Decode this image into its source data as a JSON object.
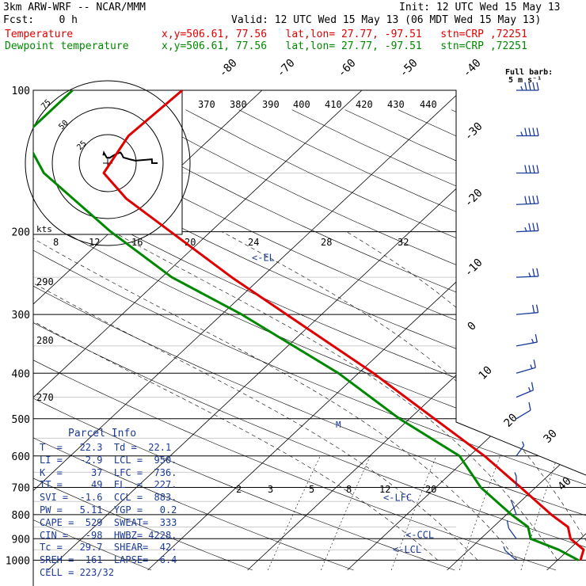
{
  "header": {
    "model": "3km ARW-WRF -- NCAR/MMM",
    "init": "Init: 12 UTC Wed 15 May 13",
    "fcst": "Fcst:    0 h",
    "valid": "Valid: 12 UTC Wed 15 May 13 (06 MDT Wed 15 May 13)",
    "temp_label": "Temperature",
    "dew_label": "Dewpoint temperature",
    "temp_loc": "x,y=506.61, 77.56   lat,lon= 27.77, -97.51   stn=CRP ,72251",
    "dew_loc": "x,y=506.61, 77.56   lat,lon= 27.77, -97.51   stn=CRP ,72251"
  },
  "colors": {
    "temperature": "#e00000",
    "dewpoint": "#008800",
    "annotation": "#1a3a9a",
    "grid": "#000000"
  },
  "chart_data": {
    "type": "line",
    "title": "",
    "ylabel": "",
    "pressure_ticks": [
      "100",
      "200",
      "300",
      "400",
      "500",
      "600",
      "700",
      "800",
      "900",
      "1000"
    ],
    "temp_axis_labels": [
      "-80",
      "-70",
      "-60",
      "-50",
      "-40",
      "-30",
      "-20",
      "-10",
      "0",
      "10",
      "20",
      "30",
      "40"
    ],
    "theta_labels": [
      "370",
      "380",
      "390",
      "400",
      "410",
      "420",
      "430",
      "440",
      "290",
      "280",
      "270"
    ],
    "mixing_ratio_labels": [
      "8",
      "12",
      "16",
      "20",
      "24",
      "28",
      "32",
      "2",
      "3",
      "5",
      "8",
      "12",
      "20"
    ],
    "wind_units_label": "Full barb:\n5 m s⁻¹",
    "hodograph_label": "kts",
    "hodograph_ring_labels": [
      "75",
      "50",
      "25"
    ],
    "series": [
      {
        "name": "Temperature",
        "points": [
          [
            1000,
            22.3
          ],
          [
            950,
            21.5
          ],
          [
            900,
            19.0
          ],
          [
            850,
            17.5
          ],
          [
            800,
            14.5
          ],
          [
            700,
            8.5
          ],
          [
            600,
            1.5
          ],
          [
            500,
            -7.5
          ],
          [
            400,
            -18.5
          ],
          [
            300,
            -33.5
          ],
          [
            250,
            -43.0
          ],
          [
            200,
            -54.0
          ],
          [
            170,
            -62.0
          ],
          [
            150,
            -67.0
          ],
          [
            125,
            -68.5
          ],
          [
            100,
            -68.0
          ]
        ]
      },
      {
        "name": "Dewpoint temperature",
        "points": [
          [
            1000,
            22.1
          ],
          [
            950,
            19.0
          ],
          [
            900,
            15.0
          ],
          [
            850,
            13.5
          ],
          [
            800,
            10.5
          ],
          [
            700,
            4.5
          ],
          [
            600,
            -1.0
          ],
          [
            500,
            -11.0
          ],
          [
            400,
            -22.0
          ],
          [
            300,
            -38.0
          ],
          [
            250,
            -49.0
          ],
          [
            200,
            -60.0
          ],
          [
            150,
            -73.0
          ],
          [
            125,
            -79.0
          ],
          [
            100,
            -79.0
          ]
        ]
      }
    ],
    "levels": [
      {
        "label": "<-EL",
        "p": 227
      },
      {
        "label": "<-LFC",
        "p": 736
      },
      {
        "label": "<-CCL",
        "p": 883
      },
      {
        "label": "<-LCL",
        "p": 950
      }
    ],
    "wind_barbs": [
      {
        "p": 100,
        "spd": 45,
        "dir": 270
      },
      {
        "p": 125,
        "spd": 45,
        "dir": 270
      },
      {
        "p": 150,
        "spd": 40,
        "dir": 270
      },
      {
        "p": 175,
        "spd": 40,
        "dir": 265
      },
      {
        "p": 200,
        "spd": 35,
        "dir": 265
      },
      {
        "p": 250,
        "spd": 25,
        "dir": 265
      },
      {
        "p": 300,
        "spd": 20,
        "dir": 260
      },
      {
        "p": 350,
        "spd": 15,
        "dir": 250
      },
      {
        "p": 400,
        "spd": 15,
        "dir": 240
      },
      {
        "p": 450,
        "spd": 15,
        "dir": 230
      },
      {
        "p": 500,
        "spd": 10,
        "dir": 220
      },
      {
        "p": 600,
        "spd": 5,
        "dir": 200
      },
      {
        "p": 700,
        "spd": 5,
        "dir": 180
      },
      {
        "p": 800,
        "spd": 5,
        "dir": 170
      },
      {
        "p": 900,
        "spd": 10,
        "dir": 160
      },
      {
        "p": 1000,
        "spd": 8,
        "dir": 150
      }
    ]
  },
  "parcel_info": {
    "title": "Parcel Info",
    "rows": [
      "T  =   22.3  Td =  22.1",
      "LI =   -2.9  LCL =  950.",
      "K  =     37  LFC =  736.",
      "TT =     49  EL  =  227.",
      "SVI =  -1.6  CCL =  883.",
      "PW =   5.11  YGP =   0.2",
      "CAPE =  529  SWEAT=  333",
      "CIN =   -98  HWBZ= 4228.",
      "Tc =   29.7  SHEAR=  42.",
      "SREH =  161  LAPSE=  6.4",
      "CELL = 223/32"
    ]
  }
}
